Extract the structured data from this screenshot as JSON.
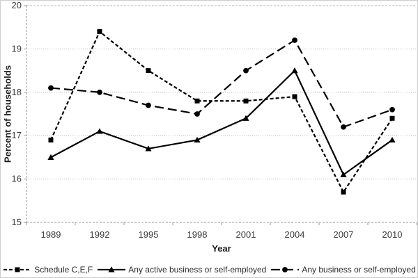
{
  "figure": {
    "background": "#ffffff",
    "border_color": "#cccccc"
  },
  "chart_data": {
    "type": "line",
    "xlabel": "Year",
    "ylabel": "Percent of households",
    "categories": [
      "1989",
      "1992",
      "1995",
      "1998",
      "2001",
      "2004",
      "2007",
      "2010"
    ],
    "ylim": [
      15,
      20
    ],
    "yticks": [
      15,
      16,
      17,
      18,
      19,
      20
    ],
    "grid": true,
    "legend_position": "bottom",
    "axis_color": "#999999",
    "grid_color": "#b5b5b5",
    "tick_label_color": "#3a3a3a",
    "series": [
      {
        "name": "Schedule C,E,F",
        "marker": "square",
        "line_style": "dashed",
        "color": "#000000",
        "values": [
          16.9,
          19.4,
          18.5,
          17.8,
          17.8,
          17.9,
          15.7,
          17.4
        ]
      },
      {
        "name": "Any active business or self-employed",
        "marker": "triangle",
        "line_style": "solid",
        "color": "#000000",
        "values": [
          16.5,
          17.1,
          16.7,
          16.9,
          17.4,
          18.5,
          16.1,
          16.9
        ]
      },
      {
        "name": "Any business or self-employed",
        "marker": "circle",
        "line_style": "long-dash",
        "color": "#000000",
        "values": [
          18.1,
          18.0,
          17.7,
          17.5,
          18.5,
          19.2,
          17.2,
          17.6
        ]
      }
    ]
  }
}
